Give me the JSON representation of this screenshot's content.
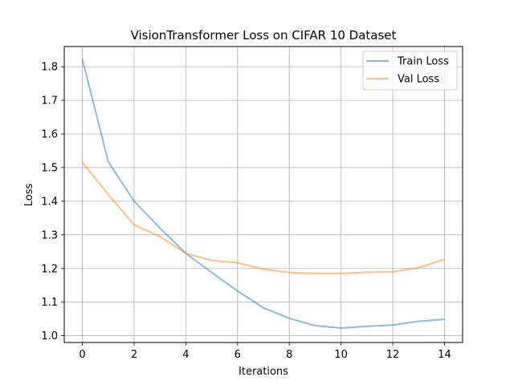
{
  "chart_data": {
    "type": "line",
    "title": "VisionTransformer Loss on CIFAR 10 Dataset",
    "xlabel": "Iterations",
    "ylabel": "Loss",
    "xlim": [
      -0.7,
      14.7
    ],
    "ylim": [
      0.98,
      1.86
    ],
    "xticks": [
      0,
      2,
      4,
      6,
      8,
      10,
      12,
      14
    ],
    "yticks": [
      1.0,
      1.1,
      1.2,
      1.3,
      1.4,
      1.5,
      1.6,
      1.7,
      1.8
    ],
    "grid": true,
    "legend_position": "top-right",
    "x": [
      0,
      1,
      2,
      3,
      4,
      5,
      6,
      7,
      8,
      9,
      10,
      11,
      12,
      13,
      14
    ],
    "series": [
      {
        "name": "Train Loss",
        "color": "#1f77b4",
        "values": [
          1.822,
          1.518,
          1.4,
          1.32,
          1.245,
          1.188,
          1.133,
          1.083,
          1.052,
          1.03,
          1.023,
          1.028,
          1.032,
          1.043,
          1.049
        ]
      },
      {
        "name": "Val Loss",
        "color": "#ff7f0e",
        "values": [
          1.516,
          1.42,
          1.33,
          1.295,
          1.245,
          1.224,
          1.217,
          1.198,
          1.188,
          1.185,
          1.185,
          1.189,
          1.19,
          1.203,
          1.227
        ]
      }
    ]
  }
}
